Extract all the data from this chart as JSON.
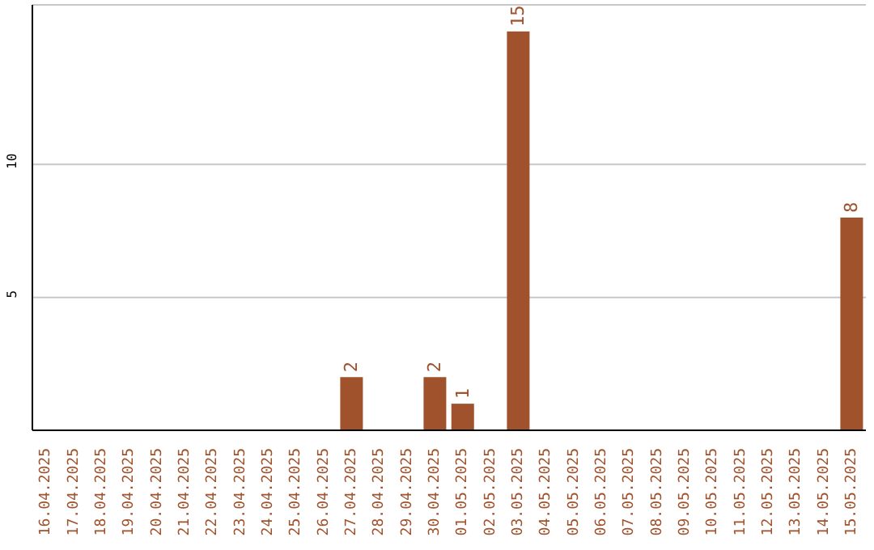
{
  "chart_data": {
    "type": "bar",
    "categories": [
      "16.04.2025",
      "17.04.2025",
      "18.04.2025",
      "19.04.2025",
      "20.04.2025",
      "21.04.2025",
      "22.04.2025",
      "23.04.2025",
      "24.04.2025",
      "25.04.2025",
      "26.04.2025",
      "27.04.2025",
      "28.04.2025",
      "29.04.2025",
      "30.04.2025",
      "01.05.2025",
      "02.05.2025",
      "03.05.2025",
      "04.05.2025",
      "05.05.2025",
      "06.05.2025",
      "07.05.2025",
      "08.05.2025",
      "09.05.2025",
      "10.05.2025",
      "11.05.2025",
      "12.05.2025",
      "13.05.2025",
      "14.05.2025",
      "15.05.2025"
    ],
    "values": [
      0,
      0,
      0,
      0,
      0,
      0,
      0,
      0,
      0,
      0,
      0,
      2,
      0,
      0,
      2,
      1,
      0,
      15,
      0,
      0,
      0,
      0,
      0,
      0,
      0,
      0,
      0,
      0,
      0,
      8
    ],
    "value_labels": [
      null,
      null,
      null,
      null,
      null,
      null,
      null,
      null,
      null,
      null,
      null,
      "2",
      null,
      null,
      "2",
      "1",
      null,
      "15",
      null,
      null,
      null,
      null,
      null,
      null,
      null,
      null,
      null,
      null,
      null,
      "8"
    ],
    "color": "#a0522d",
    "ylim": [
      0,
      16
    ],
    "yticks": [
      5,
      10
    ],
    "grid": "y"
  }
}
